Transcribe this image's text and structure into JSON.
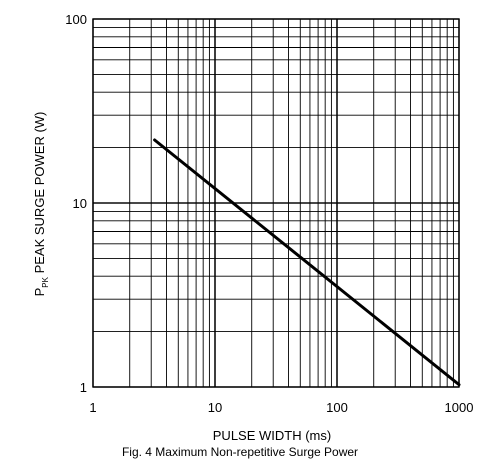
{
  "chart_data": {
    "type": "line",
    "caption": "Fig. 4  Maximum Non-repetitive Surge Power",
    "xlabel": "PULSE WIDTH (ms)",
    "ylabel_main": "P",
    "ylabel_sub": "PK",
    "ylabel_rest": " PEAK SURGE POWER (W)",
    "x_scale": "log",
    "y_scale": "log",
    "xlim": [
      1,
      1000
    ],
    "ylim": [
      1,
      100
    ],
    "x_ticks": [
      "1",
      "10",
      "100",
      "1000"
    ],
    "y_ticks": [
      "1",
      "10",
      "100"
    ],
    "grid": true,
    "series": [
      {
        "x": [
          3.2,
          1000
        ],
        "y": [
          22,
          1.03
        ]
      }
    ]
  }
}
